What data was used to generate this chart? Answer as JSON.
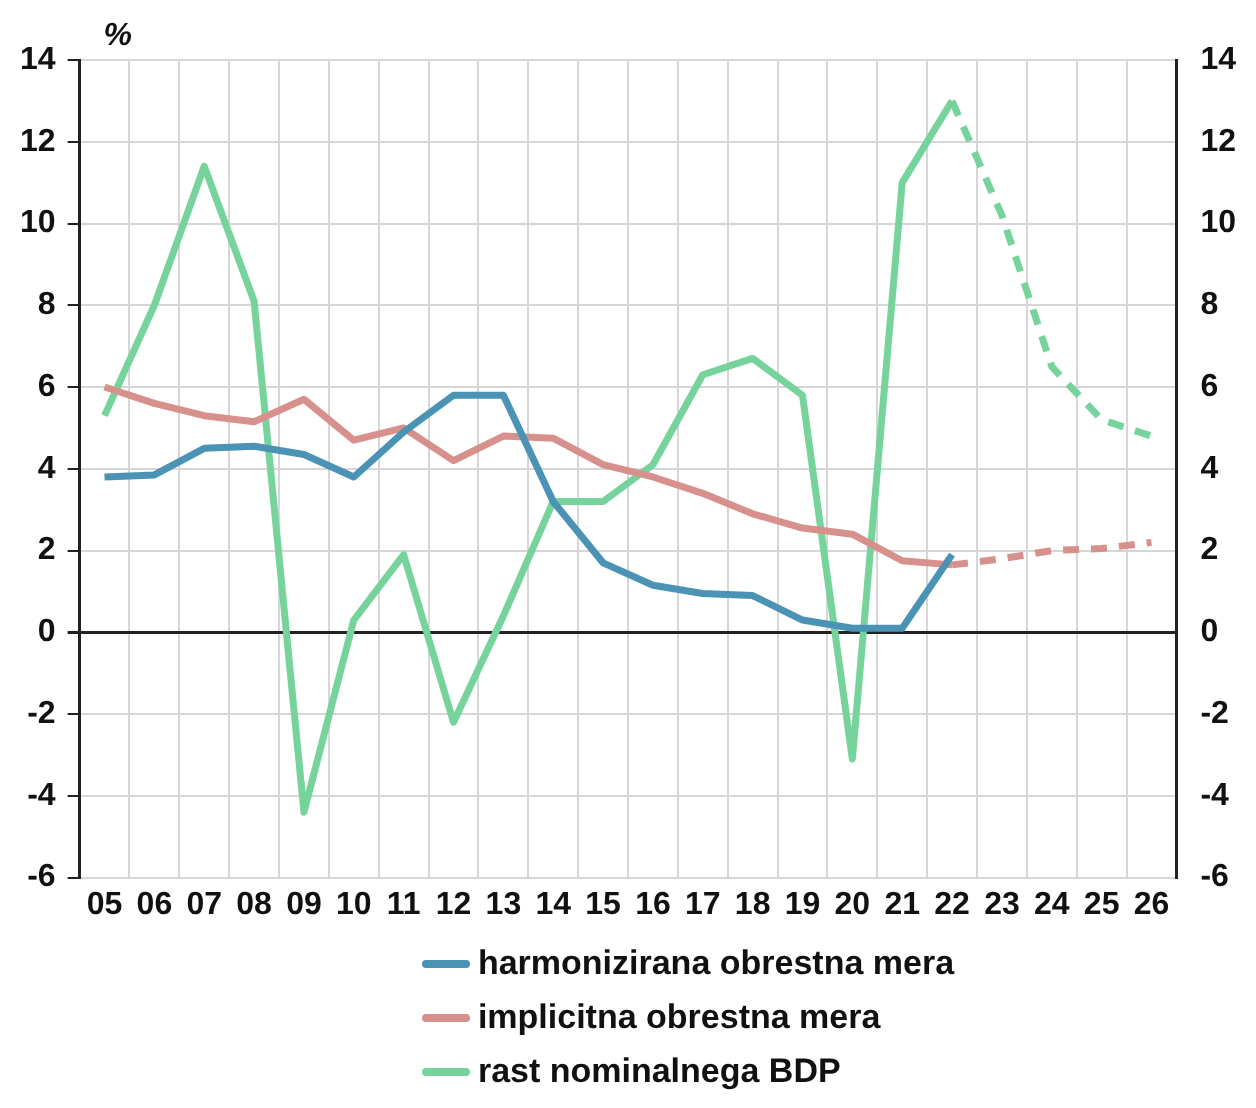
{
  "chart_data": {
    "type": "line",
    "ylabel": "%",
    "categories": [
      "05",
      "06",
      "07",
      "08",
      "09",
      "10",
      "11",
      "12",
      "13",
      "14",
      "15",
      "16",
      "17",
      "18",
      "19",
      "20",
      "21",
      "22",
      "23",
      "24",
      "25",
      "26"
    ],
    "series": [
      {
        "name": "harmonizirana obrestna mera",
        "color": "#4a93b5",
        "values": [
          3.8,
          3.85,
          4.5,
          4.55,
          4.35,
          3.8,
          4.9,
          5.8,
          5.8,
          3.2,
          1.7,
          1.15,
          0.95,
          0.9,
          0.3,
          0.1,
          0.1,
          1.9,
          null,
          null,
          null,
          null
        ]
      },
      {
        "name": "implicitna obrestna mera",
        "color": "#d8908c",
        "values": [
          6.0,
          5.6,
          5.3,
          5.15,
          5.7,
          4.7,
          5.0,
          4.2,
          4.8,
          4.75,
          4.1,
          3.8,
          3.4,
          2.9,
          2.55,
          2.4,
          1.75,
          1.65,
          null,
          null,
          null,
          null
        ]
      },
      {
        "name": "rast nominalnega BDP",
        "color": "#76d39c",
        "values": [
          5.3,
          8.0,
          11.4,
          8.1,
          -4.4,
          0.3,
          1.9,
          -2.2,
          0.4,
          3.2,
          3.2,
          4.1,
          6.3,
          6.7,
          5.8,
          -3.1,
          11.0,
          13.0,
          null,
          null,
          null,
          null
        ]
      },
      {
        "color": "#d8908c",
        "line_style": "dashed",
        "values": [
          null,
          null,
          null,
          null,
          null,
          null,
          null,
          null,
          null,
          null,
          null,
          null,
          null,
          null,
          null,
          null,
          null,
          1.65,
          1.8,
          2.0,
          2.05,
          2.2
        ]
      },
      {
        "color": "#76d39c",
        "line_style": "dashed",
        "values": [
          null,
          null,
          null,
          null,
          null,
          null,
          null,
          null,
          null,
          null,
          null,
          null,
          null,
          null,
          null,
          null,
          null,
          13.0,
          10.2,
          6.5,
          5.2,
          4.8
        ]
      }
    ],
    "ylim": [
      -6,
      14
    ],
    "yticks": [
      -6,
      -4,
      -2,
      0,
      2,
      4,
      6,
      8,
      10,
      12,
      14
    ],
    "y2lim": [
      -6,
      14
    ],
    "y2ticks": [
      -6,
      -4,
      -2,
      0,
      2,
      4,
      6,
      8,
      10,
      12,
      14
    ],
    "grid": true,
    "legend": "bottom",
    "marker": "none"
  }
}
